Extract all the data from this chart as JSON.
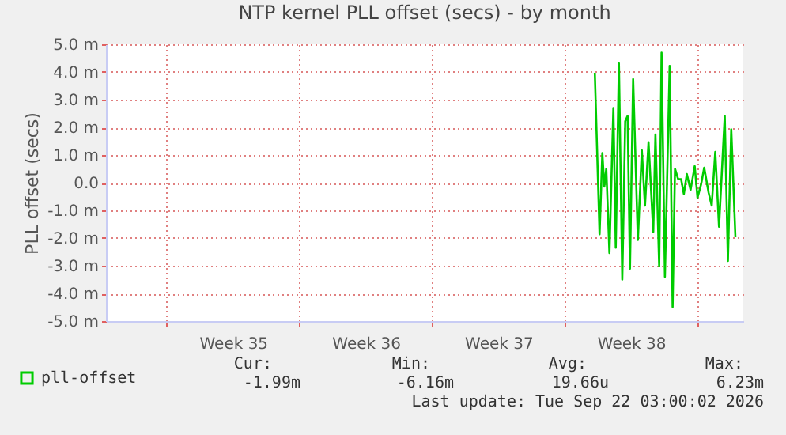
{
  "chart_data": {
    "type": "line",
    "title": "NTP kernel PLL offset (secs) - by month",
    "ylabel": "PLL offset (secs)",
    "xlim": [
      "2026-08-20T19:00",
      "2026-09-23T10:00"
    ],
    "xticks": [
      {
        "value": "2026-08-24",
        "label": null
      },
      {
        "value": "2026-08-27T12:00",
        "label": "Week 35"
      },
      {
        "value": "2026-08-31",
        "label": null
      },
      {
        "value": "2026-09-03T12:00",
        "label": "Week 36"
      },
      {
        "value": "2026-09-07",
        "label": null
      },
      {
        "value": "2026-09-10T12:00",
        "label": "Week 37"
      },
      {
        "value": "2026-09-14",
        "label": null
      },
      {
        "value": "2026-09-17T12:00",
        "label": "Week 38"
      },
      {
        "value": "2026-09-21",
        "label": null
      }
    ],
    "ylim": [
      -5,
      5
    ],
    "yticks": [
      {
        "value": -5,
        "label": "-5.0 m"
      },
      {
        "value": -4,
        "label": "-4.0 m"
      },
      {
        "value": -3,
        "label": "-3.0 m"
      },
      {
        "value": -2,
        "label": "-2.0 m"
      },
      {
        "value": -1,
        "label": "-1.0 m"
      },
      {
        "value": 0,
        "label": "0.0"
      },
      {
        "value": 1,
        "label": "1.0 m"
      },
      {
        "value": 2,
        "label": "2.0 m"
      },
      {
        "value": 3,
        "label": "3.0 m"
      },
      {
        "value": 4,
        "label": "4.0 m"
      },
      {
        "value": 5,
        "label": "5.0 m"
      }
    ],
    "grid": true,
    "legend": "bottom",
    "marker": "none",
    "line_style": "solid",
    "series": [
      {
        "name": "pll-offset",
        "color": "#00cc00",
        "x": [
          "2026-09-15T14:00",
          "2026-09-15T20:00",
          "2026-09-15T23:30",
          "2026-09-16T02:00",
          "2026-09-16T04:30",
          "2026-09-16T08:30",
          "2026-09-16T13:30",
          "2026-09-16T16:30",
          "2026-09-16T20:30",
          "2026-09-17T00:45",
          "2026-09-17T04:30",
          "2026-09-17T07:30",
          "2026-09-17T10:30",
          "2026-09-17T14:30",
          "2026-09-17T20:30",
          "2026-09-18T01:30",
          "2026-09-18T05:30",
          "2026-09-18T10:00",
          "2026-09-18T16:00",
          "2026-09-18T18:45",
          "2026-09-18T23:30",
          "2026-09-19T02:30",
          "2026-09-19T06:45",
          "2026-09-19T12:45",
          "2026-09-19T16:30",
          "2026-09-19T19:30",
          "2026-09-19T23:30",
          "2026-09-20T03:15",
          "2026-09-20T06:45",
          "2026-09-20T10:30",
          "2026-09-20T15:15",
          "2026-09-20T20:30",
          "2026-09-21T00:00",
          "2026-09-21T04:30",
          "2026-09-21T08:30",
          "2026-09-21T14:00",
          "2026-09-21T18:00",
          "2026-09-21T22:30",
          "2026-09-22T03:15",
          "2026-09-22T10:30",
          "2026-09-22T14:30",
          "2026-09-22T18:45",
          "2026-09-23T00:00"
        ],
        "values": [
          3.97,
          -1.86,
          1.07,
          -0.14,
          0.5,
          -2.54,
          2.7,
          -2.35,
          4.31,
          -3.5,
          2.22,
          2.41,
          -3.11,
          3.74,
          -2.07,
          1.17,
          -0.83,
          1.46,
          -1.78,
          1.74,
          -3.02,
          4.7,
          -3.4,
          4.22,
          -4.49,
          0.5,
          0.13,
          0.13,
          -0.41,
          0.31,
          -0.26,
          0.6,
          -0.54,
          -0.07,
          0.54,
          -0.35,
          -0.83,
          1.11,
          -1.59,
          2.41,
          -2.83,
          1.93,
          -1.97
        ]
      }
    ],
    "annotations": [
      "Cur:",
      "Min:",
      "Avg:",
      "Max:",
      "-1.99m",
      "-6.16m",
      "19.66u",
      "6.23m",
      "Last update: Tue Sep 22 03:00:02 2026"
    ]
  }
}
